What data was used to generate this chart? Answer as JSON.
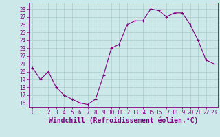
{
  "x": [
    0,
    1,
    2,
    3,
    4,
    5,
    6,
    7,
    8,
    9,
    10,
    11,
    12,
    13,
    14,
    15,
    16,
    17,
    18,
    19,
    20,
    21,
    22,
    23
  ],
  "y": [
    20.5,
    19.0,
    20.0,
    18.0,
    17.0,
    16.5,
    16.0,
    15.8,
    16.5,
    19.5,
    23.0,
    23.5,
    26.0,
    26.5,
    26.5,
    28.0,
    27.8,
    27.0,
    27.5,
    27.5,
    26.0,
    24.0,
    21.5,
    21.0
  ],
  "line_color": "#800080",
  "marker": "+",
  "bg_color": "#cce8e8",
  "grid_color": "#aacccc",
  "xlabel": "Windchill (Refroidissement éolien,°C)",
  "xlim": [
    -0.5,
    23.5
  ],
  "ylim": [
    15.5,
    28.8
  ],
  "yticks": [
    16,
    17,
    18,
    19,
    20,
    21,
    22,
    23,
    24,
    25,
    26,
    27,
    28
  ],
  "xticks": [
    0,
    1,
    2,
    3,
    4,
    5,
    6,
    7,
    8,
    9,
    10,
    11,
    12,
    13,
    14,
    15,
    16,
    17,
    18,
    19,
    20,
    21,
    22,
    23
  ],
  "tick_fontsize": 5.5,
  "xlabel_fontsize": 7.0,
  "line_color_hex": "#800080"
}
